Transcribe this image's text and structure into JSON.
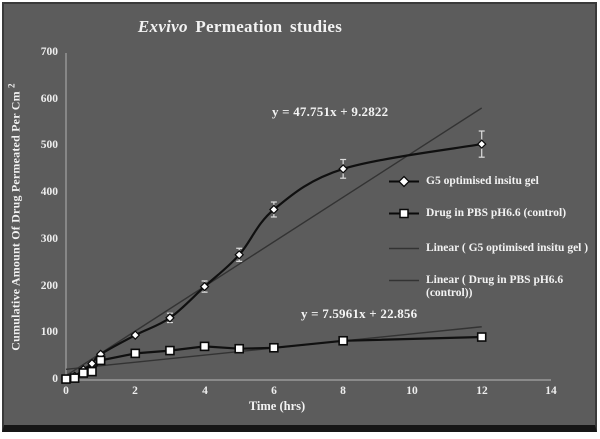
{
  "header": {
    "title_italic": "Exvivo",
    "title_rest": " Permeation  studies"
  },
  "axes": {
    "ylabel_main": "Cumulative Amount Of Drug Permeated Per Cm",
    "ylabel_sup": "2"
  },
  "legend": {
    "items": [
      {
        "label": "G5 optimised insitu gel",
        "marker": "diamond"
      },
      {
        "label": "Drug in PBS pH6.6 (control)",
        "marker": "square"
      },
      {
        "label": "Linear ( G5 optimised insitu gel )",
        "marker": "line"
      },
      {
        "label": "Linear ( Drug in PBS pH6.6 (control))",
        "marker": "line"
      }
    ]
  },
  "colors": {
    "background": "#5c5c5c",
    "frame": "#161616",
    "text": "#f2f2f2",
    "axis_line": "#9a9a9a",
    "series_line": "#101010",
    "trend_line": "#333333",
    "marker_fill": "#ffffff",
    "marker_stroke": "#0a0a0a",
    "error_bar": "#dddddd"
  },
  "chart_data": {
    "type": "line",
    "title": "Exvivo Permeation studies",
    "xlabel": "Time (hrs)",
    "ylabel": "Cumulative Amount Of Drug Permeated Per Cm 2",
    "xlim": [
      0,
      14
    ],
    "ylim": [
      0,
      700
    ],
    "x_ticks": [
      0,
      2,
      4,
      6,
      8,
      10,
      12,
      14
    ],
    "y_ticks": [
      0,
      100,
      200,
      300,
      400,
      500,
      600,
      700
    ],
    "grid": false,
    "legend_position": "right-middle",
    "series": [
      {
        "name": "G5 optimised insitu gel",
        "marker": "diamond",
        "smooth": true,
        "x": [
          0,
          0.25,
          0.5,
          0.75,
          1,
          2,
          3,
          4,
          5,
          6,
          8,
          12
        ],
        "y": [
          2,
          8,
          22,
          35,
          55,
          96,
          133,
          200,
          268,
          365,
          452,
          505
        ],
        "yerr": [
          0,
          0,
          0,
          0,
          0,
          0,
          10,
          12,
          14,
          16,
          20,
          28
        ]
      },
      {
        "name": "Drug in PBS pH6.6 (control)",
        "marker": "square",
        "smooth": false,
        "x": [
          0,
          0.25,
          0.5,
          0.75,
          1,
          2,
          3,
          4,
          5,
          6,
          8,
          12
        ],
        "y": [
          2,
          4,
          15,
          18,
          42,
          57,
          63,
          72,
          67,
          69,
          84,
          92
        ],
        "yerr": null
      }
    ],
    "trendlines": [
      {
        "name": "Linear ( G5 optimised insitu gel )",
        "equation": "y = 47.751x + 9.2822",
        "slope": 47.751,
        "intercept": 9.2822,
        "x_range": [
          0,
          12
        ]
      },
      {
        "name": "Linear ( Drug in PBS pH6.6 (control))",
        "equation": "y = 7.5961x + 22.856",
        "slope": 7.5961,
        "intercept": 22.856,
        "x_range": [
          0,
          12
        ]
      }
    ]
  }
}
